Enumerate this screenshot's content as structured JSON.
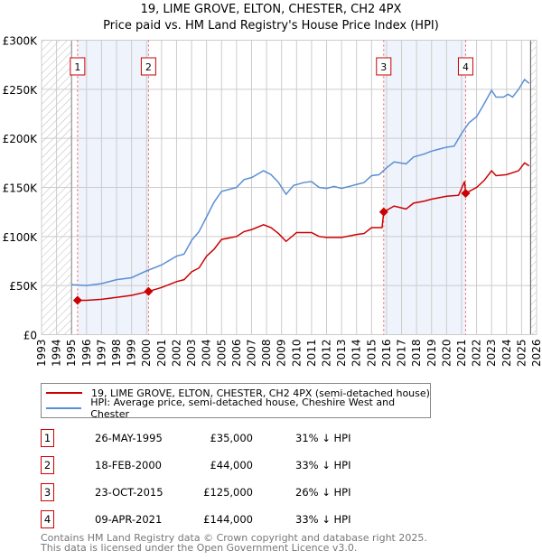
{
  "chart_data": {
    "type": "line",
    "title": "19, LIME GROVE, ELTON, CHESTER, CH2 4PX",
    "subtitle": "Price paid vs. HM Land Registry's House Price Index (HPI)",
    "xlim": [
      1993,
      2026
    ],
    "ylim": [
      0,
      300000
    ],
    "yticks": [
      {
        "v": 0,
        "label": "£0"
      },
      {
        "v": 50000,
        "label": "£50K"
      },
      {
        "v": 100000,
        "label": "£100K"
      },
      {
        "v": 150000,
        "label": "£150K"
      },
      {
        "v": 200000,
        "label": "£200K"
      },
      {
        "v": 250000,
        "label": "£250K"
      },
      {
        "v": 300000,
        "label": "£300K"
      }
    ],
    "xticks": [
      "1993",
      "1994",
      "1995",
      "1996",
      "1997",
      "1998",
      "1999",
      "2000",
      "2001",
      "2002",
      "2003",
      "2004",
      "2005",
      "2006",
      "2007",
      "2008",
      "2009",
      "2010",
      "2011",
      "2012",
      "2013",
      "2014",
      "2015",
      "2016",
      "2017",
      "2018",
      "2019",
      "2020",
      "2021",
      "2022",
      "2023",
      "2024",
      "2025",
      "2026"
    ],
    "grid": true,
    "hatched_ranges": [
      [
        1993,
        1995
      ],
      [
        2025.6,
        2026
      ]
    ],
    "shaded_ranges": [
      [
        1995.4,
        2000.13
      ],
      [
        2015.81,
        2021.27
      ]
    ],
    "series": [
      {
        "name": "19, LIME GROVE, ELTON, CHESTER, CH2 4PX (semi-detached house)",
        "color": "#cc0000",
        "x": [
          1995.4,
          1996,
          1997,
          1998,
          1999,
          2000.13,
          2001,
          2002,
          2002.5,
          2003,
          2003.5,
          2004,
          2004.5,
          2005,
          2006,
          2006.5,
          2007,
          2007.8,
          2008.3,
          2008.8,
          2009.3,
          2010,
          2011,
          2011.5,
          2012,
          2013,
          2014,
          2014.5,
          2015,
          2015.7,
          2015.81,
          2016.5,
          2017.3,
          2017.8,
          2018.5,
          2019,
          2020,
          2020.8,
          2021.2,
          2021.27,
          2022,
          2022.5,
          2023,
          2023.3,
          2024,
          2024.8,
          2025.2,
          2025.5
        ],
        "y": [
          35000,
          35000,
          36000,
          38000,
          40000,
          44000,
          48000,
          54000,
          56000,
          64000,
          68000,
          80000,
          87000,
          97000,
          100000,
          105000,
          107000,
          112000,
          109000,
          103000,
          95000,
          104000,
          104000,
          100000,
          99000,
          99000,
          102000,
          103000,
          109000,
          109000,
          125000,
          131000,
          128000,
          134000,
          136000,
          138000,
          141000,
          142000,
          156000,
          144000,
          150000,
          157000,
          167000,
          162000,
          163000,
          167000,
          175000,
          172000
        ]
      },
      {
        "name": "HPI: Average price, semi-detached house, Cheshire West and Chester",
        "color": "#5b8fd4",
        "x": [
          1995,
          1996,
          1997,
          1998,
          1999,
          2000,
          2001,
          2002,
          2002.5,
          2003,
          2003.5,
          2004,
          2004.5,
          2005,
          2006,
          2006.5,
          2007,
          2007.8,
          2008.3,
          2008.8,
          2009.3,
          2009.8,
          2010.5,
          2011,
          2011.5,
          2012,
          2012.5,
          2013,
          2013.5,
          2014,
          2014.5,
          2015,
          2015.5,
          2016,
          2016.5,
          2017.3,
          2017.8,
          2018.5,
          2019,
          2019.5,
          2020,
          2020.5,
          2021,
          2021.5,
          2022,
          2022.5,
          2023,
          2023.3,
          2023.8,
          2024.1,
          2024.4,
          2024.8,
          2025.2,
          2025.5
        ],
        "y": [
          51000,
          50000,
          52000,
          56000,
          58000,
          65000,
          71000,
          80000,
          82000,
          96000,
          105000,
          120000,
          135000,
          146000,
          150000,
          158000,
          160000,
          167000,
          163000,
          155000,
          143000,
          152000,
          155000,
          156000,
          150000,
          149000,
          151000,
          149000,
          151000,
          153000,
          155000,
          162000,
          163000,
          170000,
          176000,
          174000,
          181000,
          184000,
          187000,
          189000,
          191000,
          192000,
          205000,
          216000,
          222000,
          235000,
          249000,
          242000,
          242000,
          245000,
          242000,
          250000,
          260000,
          256000
        ]
      }
    ],
    "sales": [
      {
        "n": "1",
        "x": 1995.4,
        "y": 35000,
        "date": "26-MAY-1995",
        "price": "£35,000",
        "hpi": "31% ↓ HPI"
      },
      {
        "n": "2",
        "x": 2000.13,
        "y": 44000,
        "date": "18-FEB-2000",
        "price": "£44,000",
        "hpi": "33% ↓ HPI"
      },
      {
        "n": "3",
        "x": 2015.81,
        "y": 125000,
        "date": "23-OCT-2015",
        "price": "£125,000",
        "hpi": "26% ↓ HPI"
      },
      {
        "n": "4",
        "x": 2021.27,
        "y": 144000,
        "date": "09-APR-2021",
        "price": "£144,000",
        "hpi": "33% ↓ HPI"
      }
    ],
    "legend_placement": "below"
  },
  "footer": {
    "line1": "Contains HM Land Registry data © Crown copyright and database right 2025.",
    "line2": "This data is licensed under the Open Government Licence v3.0."
  }
}
